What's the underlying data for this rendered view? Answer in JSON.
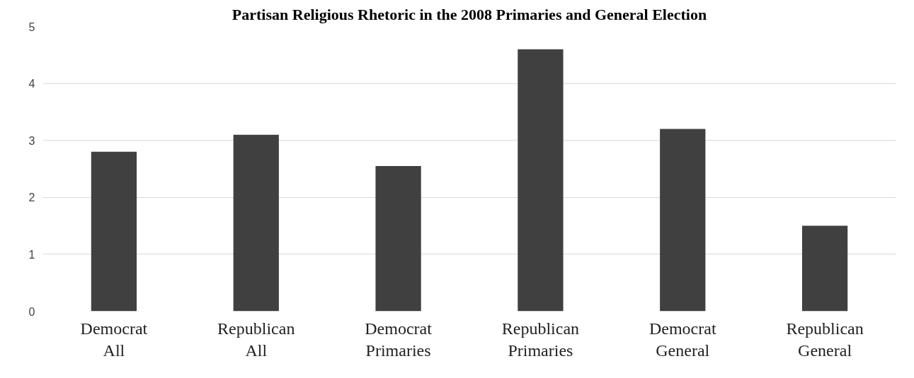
{
  "chart_data": {
    "type": "bar",
    "title": "Partisan Religious Rhetoric in the 2008 Primaries and General Election",
    "categories": [
      "Democrat\nAll",
      "Republican\nAll",
      "Democrat\nPrimaries",
      "Republican\nPrimaries",
      "Democrat\nGeneral",
      "Republican\nGeneral"
    ],
    "values": [
      2.8,
      3.1,
      2.55,
      4.6,
      3.2,
      1.5
    ],
    "color": "#404040",
    "ylim": [
      0,
      5
    ],
    "yticks": [
      0,
      1,
      2,
      3,
      4,
      5
    ],
    "grid": "y"
  }
}
